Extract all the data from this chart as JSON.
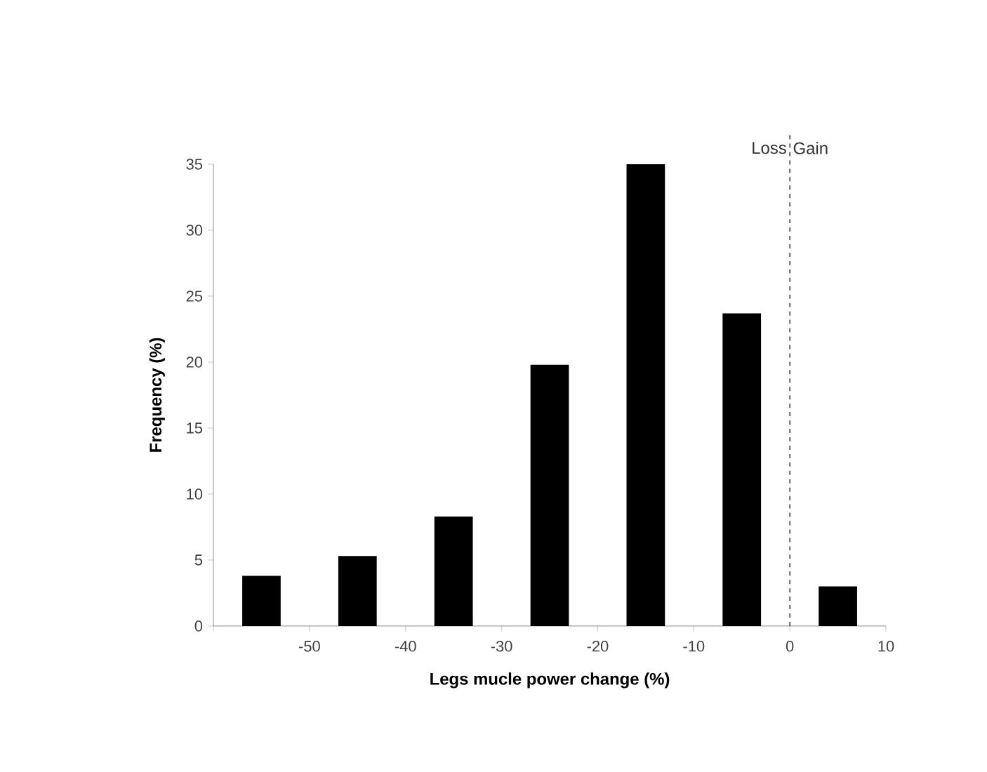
{
  "chart_data": {
    "type": "bar",
    "x": [
      -55,
      -45,
      -35,
      -25,
      -15,
      -5,
      5
    ],
    "values": [
      3.8,
      5.3,
      8.3,
      19.8,
      35,
      23.7,
      3.0
    ],
    "color": "#000000",
    "xlim": [
      -60,
      10
    ],
    "xticks": [
      {
        "value": -60,
        "label": null
      },
      -50,
      -40,
      -30,
      -20,
      -10,
      0,
      10
    ],
    "ylim": [
      0,
      35
    ],
    "yticks": [
      0,
      5,
      10,
      15,
      20,
      25,
      30,
      35
    ],
    "xlabel": "Legs mucle power change (%)",
    "ylabel": "Frequency (%)",
    "ref_lines": [
      {
        "axis": "x",
        "value": 0,
        "line_style": "dashed",
        "color": "#000000"
      }
    ],
    "annotations": [
      "Loss",
      "Gain"
    ],
    "grid": false
  }
}
